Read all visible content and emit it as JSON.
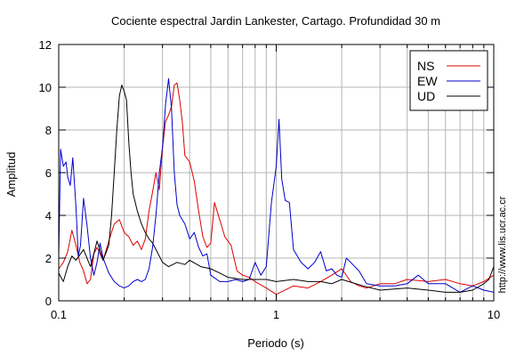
{
  "chart_data": {
    "type": "line",
    "title": "Cociente espectral Jardin Lankester, Cartago. Profundidad 30 m",
    "xlabel": "Periodo (s)",
    "ylabel": "Amplitud",
    "x_scale": "log",
    "xlim": [
      0.1,
      10
    ],
    "ylim": [
      0,
      12
    ],
    "x_ticks": [
      0.1,
      1,
      10
    ],
    "x_tick_labels": [
      "0.1",
      "1",
      "10"
    ],
    "y_ticks": [
      0,
      2,
      4,
      6,
      8,
      10,
      12
    ],
    "y_tick_labels": [
      "0",
      "2",
      "4",
      "6",
      "8",
      "10",
      "12"
    ],
    "grid": true,
    "legend_position": "top-right",
    "side_note": "http://www.lis.ucr.ac.cr",
    "series": [
      {
        "name": "NS",
        "color": "#dd0000",
        "x": [
          0.1,
          0.105,
          0.11,
          0.115,
          0.12,
          0.125,
          0.13,
          0.135,
          0.14,
          0.145,
          0.15,
          0.16,
          0.17,
          0.18,
          0.19,
          0.2,
          0.21,
          0.22,
          0.23,
          0.24,
          0.25,
          0.26,
          0.27,
          0.28,
          0.29,
          0.3,
          0.31,
          0.32,
          0.33,
          0.34,
          0.35,
          0.36,
          0.37,
          0.38,
          0.4,
          0.42,
          0.44,
          0.46,
          0.48,
          0.5,
          0.52,
          0.55,
          0.58,
          0.62,
          0.66,
          0.7,
          0.75,
          0.8,
          0.9,
          1.0,
          1.2,
          1.4,
          1.6,
          1.8,
          2.0,
          2.2,
          2.4,
          2.6,
          2.8,
          3.0,
          3.5,
          4.0,
          5.0,
          6.0,
          7.0,
          8.0,
          9.0,
          10.0
        ],
        "y": [
          1.5,
          1.8,
          2.3,
          3.3,
          2.6,
          1.8,
          1.4,
          0.8,
          1.0,
          2.2,
          2.5,
          1.9,
          2.8,
          3.6,
          3.8,
          3.2,
          3.0,
          2.6,
          2.8,
          2.4,
          2.9,
          4.2,
          5.1,
          6.0,
          5.2,
          7.2,
          8.4,
          8.7,
          9.1,
          10.1,
          10.2,
          9.4,
          8.4,
          6.8,
          6.5,
          5.6,
          4.2,
          3.0,
          2.5,
          2.7,
          4.6,
          3.8,
          3.0,
          2.6,
          1.4,
          1.2,
          1.1,
          0.9,
          0.6,
          0.3,
          0.7,
          0.6,
          0.9,
          1.2,
          1.5,
          0.9,
          0.7,
          0.6,
          0.7,
          0.8,
          0.8,
          1.0,
          0.9,
          1.0,
          0.8,
          0.7,
          0.9,
          1.2
        ]
      },
      {
        "name": "EW",
        "color": "#0000cc",
        "x": [
          0.1,
          0.102,
          0.105,
          0.108,
          0.11,
          0.113,
          0.116,
          0.12,
          0.123,
          0.126,
          0.13,
          0.135,
          0.14,
          0.145,
          0.15,
          0.155,
          0.16,
          0.17,
          0.18,
          0.19,
          0.2,
          0.21,
          0.22,
          0.23,
          0.24,
          0.25,
          0.26,
          0.27,
          0.28,
          0.29,
          0.3,
          0.31,
          0.32,
          0.33,
          0.34,
          0.35,
          0.36,
          0.38,
          0.4,
          0.42,
          0.44,
          0.46,
          0.48,
          0.5,
          0.55,
          0.6,
          0.65,
          0.7,
          0.75,
          0.8,
          0.85,
          0.9,
          0.95,
          1.0,
          1.03,
          1.06,
          1.1,
          1.15,
          1.2,
          1.3,
          1.4,
          1.5,
          1.6,
          1.7,
          1.8,
          1.9,
          2.0,
          2.1,
          2.2,
          2.4,
          2.6,
          3.0,
          3.5,
          4.0,
          4.5,
          5.0,
          6.0,
          7.0,
          8.0,
          9.0,
          10.0
        ],
        "y": [
          2.0,
          7.1,
          6.3,
          6.5,
          5.8,
          5.4,
          6.7,
          4.4,
          2.1,
          2.6,
          4.8,
          3.5,
          2.0,
          1.2,
          1.8,
          2.7,
          2.0,
          1.3,
          0.9,
          0.7,
          0.6,
          0.7,
          0.9,
          1.0,
          0.9,
          1.0,
          1.5,
          2.5,
          4.0,
          6.0,
          7.2,
          9.2,
          10.4,
          9.0,
          6.0,
          4.5,
          4.0,
          3.6,
          2.9,
          3.2,
          2.5,
          2.1,
          2.2,
          1.2,
          0.9,
          0.9,
          1.0,
          0.9,
          1.0,
          1.8,
          1.2,
          1.6,
          4.6,
          6.3,
          8.5,
          5.7,
          4.7,
          4.6,
          2.4,
          1.8,
          1.5,
          1.8,
          2.3,
          1.4,
          1.5,
          1.2,
          1.1,
          2.0,
          1.8,
          1.4,
          0.8,
          0.7,
          0.7,
          0.8,
          1.2,
          0.8,
          0.8,
          0.4,
          0.7,
          0.5,
          0.4
        ]
      },
      {
        "name": "UD",
        "color": "#000000",
        "x": [
          0.1,
          0.105,
          0.11,
          0.115,
          0.12,
          0.13,
          0.14,
          0.15,
          0.16,
          0.17,
          0.175,
          0.18,
          0.185,
          0.19,
          0.195,
          0.2,
          0.205,
          0.21,
          0.215,
          0.22,
          0.23,
          0.24,
          0.25,
          0.26,
          0.27,
          0.28,
          0.3,
          0.32,
          0.35,
          0.38,
          0.4,
          0.45,
          0.5,
          0.55,
          0.6,
          0.7,
          0.8,
          0.9,
          1.0,
          1.2,
          1.4,
          1.6,
          1.8,
          2.0,
          2.5,
          3.0,
          4.0,
          5.0,
          6.0,
          7.0,
          8.0,
          9.0,
          9.5,
          10.0
        ],
        "y": [
          1.3,
          0.9,
          1.6,
          2.1,
          1.9,
          2.4,
          1.6,
          2.8,
          1.9,
          2.6,
          4.0,
          6.0,
          8.0,
          9.6,
          10.1,
          9.8,
          9.4,
          7.4,
          6.0,
          5.0,
          4.2,
          3.6,
          3.2,
          2.9,
          2.7,
          2.4,
          1.8,
          1.6,
          1.8,
          1.7,
          1.9,
          1.6,
          1.5,
          1.3,
          1.1,
          1.0,
          1.0,
          1.0,
          0.9,
          1.0,
          0.9,
          0.9,
          0.8,
          1.0,
          0.7,
          0.5,
          0.6,
          0.5,
          0.4,
          0.4,
          0.5,
          0.8,
          1.0,
          1.6
        ]
      }
    ]
  }
}
